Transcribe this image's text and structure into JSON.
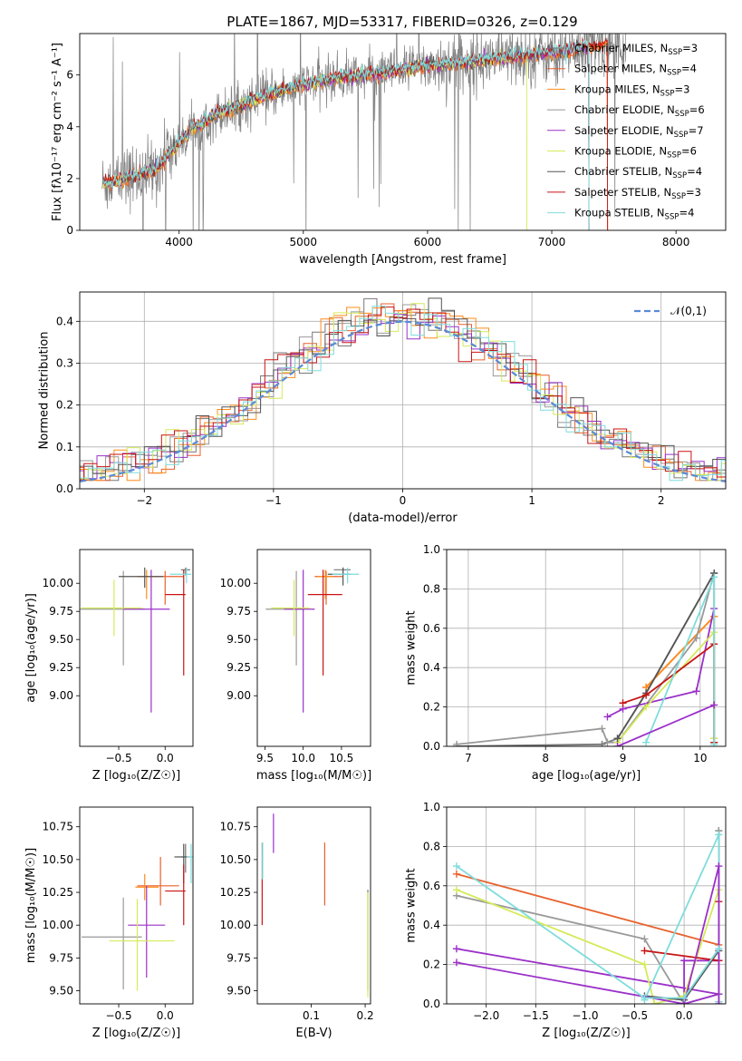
{
  "figure": {
    "title": "PLATE=1867, MJD=53317, FIBERID=0326, z=0.129"
  },
  "models": [
    {
      "name": "Chabrier MILES",
      "nssp": "3",
      "color": "#777777"
    },
    {
      "name": "Salpeter MILES",
      "nssp": "4",
      "color": "#e8612c"
    },
    {
      "name": "Kroupa MILES",
      "nssp": "3",
      "color": "#ff8c1a"
    },
    {
      "name": "Chabrier ELODIE",
      "nssp": "6",
      "color": "#999999"
    },
    {
      "name": "Salpeter ELODIE",
      "nssp": "7",
      "color": "#9b30c9"
    },
    {
      "name": "Kroupa ELODIE",
      "nssp": "6",
      "color": "#d6ea5a"
    },
    {
      "name": "Chabrier STELIB",
      "nssp": "4",
      "color": "#555555"
    },
    {
      "name": "Salpeter STELIB",
      "nssp": "3",
      "color": "#c81414"
    },
    {
      "name": "Kroupa STELIB",
      "nssp": "4",
      "color": "#7fdcdc"
    }
  ],
  "chart_data": [
    {
      "id": "spectrum",
      "type": "line",
      "xlabel": "wavelength [Angstrom, rest frame]",
      "ylabel": "Flux [fλ10⁻¹⁷ erg cm⁻² s⁻¹ A⁻¹]",
      "xlim": [
        3200,
        8400
      ],
      "ylim": [
        0,
        7.6
      ],
      "xticks": [
        "4000",
        "5000",
        "6000",
        "7000",
        "8000"
      ],
      "yticks": [
        "0",
        "2",
        "4",
        "6"
      ],
      "continuum": {
        "x": [
          3380,
          3500,
          3650,
          3800,
          3950,
          4100,
          4300,
          4500,
          4700,
          4900,
          5100,
          5300,
          5500,
          5700,
          5900,
          6100,
          6300,
          6500,
          6700,
          6900,
          7100,
          7300,
          7500
        ],
        "y": [
          1.8,
          1.9,
          2.1,
          2.3,
          3.1,
          3.9,
          4.5,
          4.8,
          5.2,
          5.5,
          5.7,
          5.9,
          6.0,
          6.1,
          6.3,
          6.4,
          6.5,
          6.6,
          6.7,
          6.8,
          6.9,
          7.1,
          7.2
        ]
      },
      "grid": false,
      "legend": "upper right"
    },
    {
      "id": "residuals",
      "type": "line",
      "xlabel": "(data-model)/error",
      "ylabel": "Normed distribution",
      "xlim": [
        -2.5,
        2.5
      ],
      "ylim": [
        0,
        0.47
      ],
      "xticks": [
        "−2",
        "−1",
        "0",
        "1",
        "2"
      ],
      "yticks": [
        "0.0",
        "0.1",
        "0.2",
        "0.3",
        "0.4"
      ],
      "reference": {
        "name": "𝒩(0,1)",
        "color": "#5a8ad6"
      },
      "grid": true,
      "legend": "upper right"
    },
    {
      "id": "age-vs-Z",
      "type": "scatter",
      "xlabel": "Z [log₁₀(Z/Z☉)]",
      "ylabel": "age  [log₁₀(age/yr)]",
      "xlim": [
        -0.92,
        0.3
      ],
      "ylim": [
        8.55,
        10.3
      ],
      "xticks": [
        "−0.5",
        "0.0"
      ],
      "yticks": [
        "9.00",
        "9.25",
        "9.50",
        "9.75",
        "10.00"
      ],
      "points": [
        {
          "model": 0,
          "x": 0.22,
          "y": 10.12,
          "xerr": [
            0.05,
            0.05
          ],
          "yerr": [
            0.05,
            0.02
          ]
        },
        {
          "model": 1,
          "x": 0.0,
          "y": 10.06,
          "xerr": [
            0.3,
            0.2
          ],
          "yerr": [
            0.25,
            0.05
          ]
        },
        {
          "model": 2,
          "x": -0.2,
          "y": 10.06,
          "xerr": [
            0.1,
            0.1
          ],
          "yerr": [
            0.2,
            0.06
          ]
        },
        {
          "model": 3,
          "x": -0.45,
          "y": 9.77,
          "xerr": [
            0.47,
            0.23
          ],
          "yerr": [
            0.5,
            0.34
          ]
        },
        {
          "model": 4,
          "x": -0.15,
          "y": 9.77,
          "xerr": [
            0.3,
            0.2
          ],
          "yerr": [
            0.92,
            0.35
          ]
        },
        {
          "model": 5,
          "x": -0.55,
          "y": 9.78,
          "xerr": [
            0.35,
            0.3
          ],
          "yerr": [
            0.25,
            0.25
          ]
        },
        {
          "model": 6,
          "x": -0.22,
          "y": 10.06,
          "xerr": [
            0.28,
            0.2
          ],
          "yerr": [
            0.1,
            0.08
          ]
        },
        {
          "model": 7,
          "x": 0.2,
          "y": 9.9,
          "xerr": [
            0.2,
            0.02
          ],
          "yerr": [
            0.72,
            0.22
          ]
        },
        {
          "model": 8,
          "x": 0.23,
          "y": 10.08,
          "xerr": [
            0.18,
            0.05
          ],
          "yerr": [
            0.08,
            0.06
          ]
        }
      ]
    },
    {
      "id": "age-vs-mass",
      "type": "scatter",
      "xlabel": "mass [log₁₀(M/M☉)]",
      "ylabel": "",
      "xlim": [
        9.4,
        10.88
      ],
      "ylim": [
        8.55,
        10.3
      ],
      "xticks": [
        "9.5",
        "10.0",
        "10.5"
      ],
      "yticks": [
        "9.00",
        "9.25",
        "9.50",
        "9.75",
        "10.00"
      ],
      "points": [
        {
          "model": 0,
          "x": 10.52,
          "y": 10.12,
          "xerr": [
            0.12,
            0.1
          ],
          "yerr": [
            0.05,
            0.02
          ]
        },
        {
          "model": 1,
          "x": 10.3,
          "y": 10.06,
          "xerr": [
            0.15,
            0.22
          ],
          "yerr": [
            0.25,
            0.05
          ]
        },
        {
          "model": 2,
          "x": 10.29,
          "y": 10.06,
          "xerr": [
            0.1,
            0.1
          ],
          "yerr": [
            0.2,
            0.06
          ]
        },
        {
          "model": 3,
          "x": 9.91,
          "y": 9.77,
          "xerr": [
            0.4,
            0.1
          ],
          "yerr": [
            0.5,
            0.34
          ]
        },
        {
          "model": 4,
          "x": 10.0,
          "y": 9.77,
          "xerr": [
            0.25,
            0.15
          ],
          "yerr": [
            0.92,
            0.35
          ]
        },
        {
          "model": 5,
          "x": 9.88,
          "y": 9.78,
          "xerr": [
            0.3,
            0.2
          ],
          "yerr": [
            0.25,
            0.25
          ]
        },
        {
          "model": 6,
          "x": 10.52,
          "y": 10.08,
          "xerr": [
            0.2,
            0.1
          ],
          "yerr": [
            0.1,
            0.06
          ]
        },
        {
          "model": 7,
          "x": 10.26,
          "y": 9.9,
          "xerr": [
            0.2,
            0.25
          ],
          "yerr": [
            0.72,
            0.22
          ]
        },
        {
          "model": 8,
          "x": 10.58,
          "y": 10.08,
          "xerr": [
            0.2,
            0.15
          ],
          "yerr": [
            0.08,
            0.06
          ]
        }
      ]
    },
    {
      "id": "weight-vs-age",
      "type": "line",
      "xlabel": "age  [log₁₀(age/yr)]",
      "ylabel": "mass weight",
      "xlim": [
        6.72,
        10.33
      ],
      "ylim": [
        0,
        1.0
      ],
      "xticks": [
        "7",
        "8",
        "9",
        "10"
      ],
      "yticks": [
        "0.0",
        "0.2",
        "0.4",
        "0.6",
        "0.8",
        "1.0"
      ],
      "grid": true,
      "series": [
        {
          "model": 0,
          "x": [
            6.85,
            8.73,
            8.93,
            9.3,
            10.18,
            10.18
          ],
          "y": [
            0.0,
            0.01,
            0.04,
            0.27,
            0.88,
            0.02
          ]
        },
        {
          "model": 1,
          "x": [
            9.3,
            10.18,
            10.18
          ],
          "y": [
            0.3,
            0.66,
            0.04
          ]
        },
        {
          "model": 2,
          "x": [
            9.3,
            10.18
          ],
          "y": [
            0.3,
            0.66
          ]
        },
        {
          "model": 3,
          "x": [
            6.85,
            8.73,
            8.8,
            8.93,
            9.95,
            10.18
          ],
          "y": [
            0.01,
            0.09,
            0.02,
            0.02,
            0.55,
            0.88
          ]
        },
        {
          "model": 4,
          "x": [
            8.8,
            9.0,
            9.95,
            10.18
          ],
          "y": [
            0.15,
            0.19,
            0.28,
            0.7
          ]
        },
        {
          "model": 5,
          "x": [
            8.93,
            9.3,
            10.18,
            10.18
          ],
          "y": [
            0.02,
            0.2,
            0.58,
            0.04
          ]
        },
        {
          "model": 6,
          "x": [
            8.93,
            9.3,
            10.18
          ],
          "y": [
            0.04,
            0.27,
            0.88
          ]
        },
        {
          "model": 7,
          "x": [
            9.0,
            9.3,
            10.18,
            10.18
          ],
          "y": [
            0.22,
            0.26,
            0.52,
            0.02
          ]
        },
        {
          "model": 8,
          "x": [
            9.3,
            10.18,
            10.18
          ],
          "y": [
            0.02,
            0.86,
            0.01
          ]
        },
        {
          "model": 4,
          "x": [
            8.93,
            10.18
          ],
          "y": [
            0.0,
            0.21
          ]
        }
      ]
    },
    {
      "id": "mass-vs-Z",
      "type": "scatter",
      "xlabel": "Z [log₁₀(Z/Z☉)]",
      "ylabel": "mass [log₁₀(M/M☉)]",
      "xlim": [
        -0.92,
        0.3
      ],
      "ylim": [
        9.4,
        10.9
      ],
      "xticks": [
        "−0.5",
        "0.0"
      ],
      "yticks": [
        "9.50",
        "9.75",
        "10.00",
        "10.25",
        "10.50",
        "10.75"
      ],
      "points": [
        {
          "model": 0,
          "x": 0.22,
          "y": 10.52,
          "xerr": [
            0.05,
            0.05
          ],
          "yerr": [
            0.12,
            0.1
          ]
        },
        {
          "model": 1,
          "x": -0.05,
          "y": 10.3,
          "xerr": [
            0.25,
            0.2
          ],
          "yerr": [
            0.15,
            0.22
          ]
        },
        {
          "model": 2,
          "x": -0.22,
          "y": 10.29,
          "xerr": [
            0.1,
            0.15
          ],
          "yerr": [
            0.1,
            0.1
          ]
        },
        {
          "model": 3,
          "x": -0.45,
          "y": 9.91,
          "xerr": [
            0.45,
            0.2
          ],
          "yerr": [
            0.4,
            0.3
          ]
        },
        {
          "model": 4,
          "x": -0.2,
          "y": 10.0,
          "xerr": [
            0.2,
            0.2
          ],
          "yerr": [
            0.4,
            0.3
          ]
        },
        {
          "model": 5,
          "x": -0.3,
          "y": 9.88,
          "xerr": [
            0.3,
            0.4
          ],
          "yerr": [
            0.38,
            0.32
          ]
        },
        {
          "model": 6,
          "x": 0.2,
          "y": 10.52,
          "xerr": [
            0.1,
            0.05
          ],
          "yerr": [
            0.2,
            0.1
          ]
        },
        {
          "model": 7,
          "x": 0.2,
          "y": 10.26,
          "xerr": [
            0.2,
            0.02
          ],
          "yerr": [
            0.26,
            0.2
          ]
        },
        {
          "model": 8,
          "x": 0.28,
          "y": 10.52,
          "xerr": [
            0.05,
            0.02
          ],
          "yerr": [
            0.2,
            0.1
          ]
        }
      ]
    },
    {
      "id": "mass-vs-EBV",
      "type": "scatter",
      "xlabel": "E(B-V)",
      "ylabel": "",
      "xlim": [
        0.0,
        0.21
      ],
      "ylim": [
        9.4,
        10.9
      ],
      "xticks": [
        "0.1",
        "0.2"
      ],
      "yticks": [
        "9.50",
        "9.75",
        "10.00",
        "10.25",
        "10.50",
        "10.75"
      ],
      "points": [
        {
          "model": 0,
          "x": 0.205,
          "y": 10.0,
          "xerr": [
            0,
            0
          ],
          "yerr": [
            0.5,
            0.27
          ]
        },
        {
          "model": 1,
          "x": 0.125,
          "y": 10.4,
          "xerr": [
            0,
            0
          ],
          "yerr": [
            0.25,
            0.23
          ]
        },
        {
          "model": 3,
          "x": 0.009,
          "y": 10.5,
          "xerr": [
            0,
            0
          ],
          "yerr": [
            0.15,
            0.13
          ]
        },
        {
          "model": 5,
          "x": 0.205,
          "y": 9.85,
          "xerr": [
            0,
            0
          ],
          "yerr": [
            0.4,
            0.4
          ]
        },
        {
          "model": 7,
          "x": 0.009,
          "y": 10.18,
          "xerr": [
            0,
            0
          ],
          "yerr": [
            0.18,
            0.17
          ]
        },
        {
          "model": 8,
          "x": 0.01,
          "y": 10.5,
          "xerr": [
            0,
            0
          ],
          "yerr": [
            0.15,
            0.13
          ]
        },
        {
          "model": 4,
          "x": 0.03,
          "y": 10.65,
          "xerr": [
            0,
            0
          ],
          "yerr": [
            0.1,
            0.2
          ]
        }
      ]
    },
    {
      "id": "weight-vs-Z",
      "type": "line",
      "xlabel": "Z [log₁₀(Z/Z☉)]",
      "ylabel": "mass weight",
      "xlim": [
        -2.4,
        0.42
      ],
      "ylim": [
        0,
        1.0
      ],
      "xticks": [
        "−2.0",
        "−1.5",
        "−1.0",
        "−0.5",
        "0.0"
      ],
      "yticks": [
        "0.0",
        "0.2",
        "0.4",
        "0.6",
        "0.8",
        "1.0"
      ],
      "grid": true,
      "series": [
        {
          "model": 0,
          "x": [
            0.35,
            0.35,
            0.35
          ],
          "y": [
            0.88,
            0.05,
            0.01
          ]
        },
        {
          "model": 1,
          "x": [
            -2.3,
            0.35
          ],
          "y": [
            0.66,
            0.3
          ]
        },
        {
          "model": 3,
          "x": [
            -2.3,
            -0.4,
            0.0,
            0.35,
            0.35
          ],
          "y": [
            0.55,
            0.33,
            0.0,
            0.05,
            0.88
          ]
        },
        {
          "model": 4,
          "x": [
            -2.3,
            0.35,
            0.0,
            0.0,
            0.35
          ],
          "y": [
            0.28,
            0.05,
            0.0,
            0.22,
            0.22
          ]
        },
        {
          "model": 5,
          "x": [
            -2.3,
            -0.4,
            -0.3,
            0.0,
            0.35
          ],
          "y": [
            0.58,
            0.2,
            0.0,
            0.04,
            0.58
          ]
        },
        {
          "model": 6,
          "x": [
            -0.4,
            0.0,
            0.35
          ],
          "y": [
            0.04,
            0.02,
            0.27
          ]
        },
        {
          "model": 7,
          "x": [
            -0.4,
            0.35,
            0.35
          ],
          "y": [
            0.27,
            0.22,
            0.52
          ]
        },
        {
          "model": 8,
          "x": [
            -0.4,
            0.35,
            0.35
          ],
          "y": [
            0.02,
            0.86,
            0.01
          ]
        },
        {
          "model": 4,
          "x": [
            -2.3,
            0.0,
            0.35,
            0.35
          ],
          "y": [
            0.21,
            0.0,
            0.7,
            0.0
          ]
        },
        {
          "model": 8,
          "x": [
            -2.3,
            -0.4,
            0.0,
            0.35
          ],
          "y": [
            0.7,
            0.03,
            0.03,
            0.28
          ]
        }
      ]
    }
  ]
}
